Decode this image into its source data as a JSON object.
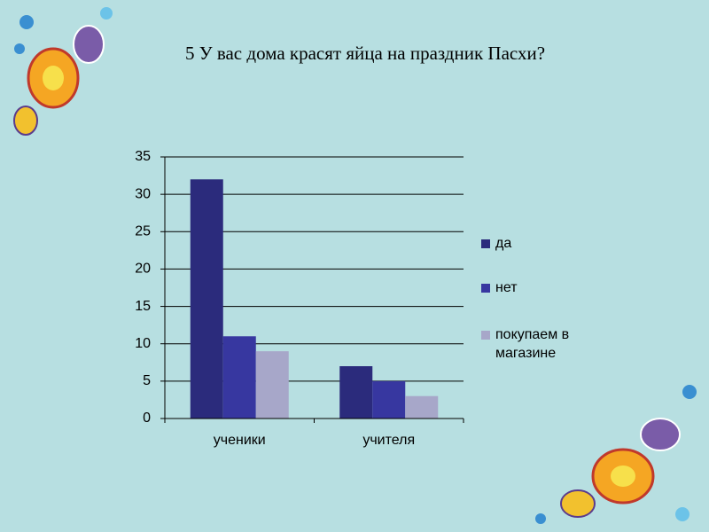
{
  "chart_data": {
    "type": "bar",
    "title": "5 У вас дома красят яйца на праздник Пасхи?",
    "categories": [
      "ученики",
      "учителя"
    ],
    "series": [
      {
        "name": "да",
        "color": "#2b2b7c",
        "values": [
          32,
          7
        ]
      },
      {
        "name": "нет",
        "color": "#3737a0",
        "values": [
          11,
          5
        ]
      },
      {
        "name": "покупаем в магазине",
        "color": "#a7a7c9",
        "values": [
          9,
          3
        ]
      }
    ],
    "ylim": [
      0,
      35
    ],
    "yticks": [
      0,
      5,
      10,
      15,
      20,
      25,
      30,
      35
    ],
    "grid": true,
    "legend": "right"
  }
}
